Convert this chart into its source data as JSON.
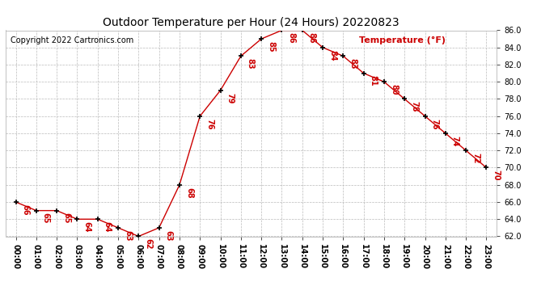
{
  "title": "Outdoor Temperature per Hour (24 Hours) 20220823",
  "copyright": "Copyright 2022 Cartronics.com",
  "ylabel": "Temperature (°F)",
  "hours": [
    "00:00",
    "01:00",
    "02:00",
    "03:00",
    "04:00",
    "05:00",
    "06:00",
    "07:00",
    "08:00",
    "09:00",
    "10:00",
    "11:00",
    "12:00",
    "13:00",
    "14:00",
    "15:00",
    "16:00",
    "17:00",
    "18:00",
    "19:00",
    "20:00",
    "21:00",
    "22:00",
    "23:00"
  ],
  "temps": [
    66,
    65,
    65,
    64,
    64,
    63,
    62,
    63,
    68,
    76,
    79,
    83,
    85,
    86,
    86,
    84,
    83,
    81,
    80,
    78,
    76,
    74,
    72,
    70
  ],
  "ylim_min": 62.0,
  "ylim_max": 86.0,
  "yticks": [
    62.0,
    64.0,
    66.0,
    68.0,
    70.0,
    72.0,
    74.0,
    76.0,
    78.0,
    80.0,
    82.0,
    84.0,
    86.0
  ],
  "line_color": "#cc0000",
  "marker_color": "#000000",
  "label_color": "#cc0000",
  "title_color": "#000000",
  "copyright_color": "#000000",
  "ylabel_color": "#cc0000",
  "bg_color": "#ffffff",
  "grid_color": "#bbbbbb"
}
